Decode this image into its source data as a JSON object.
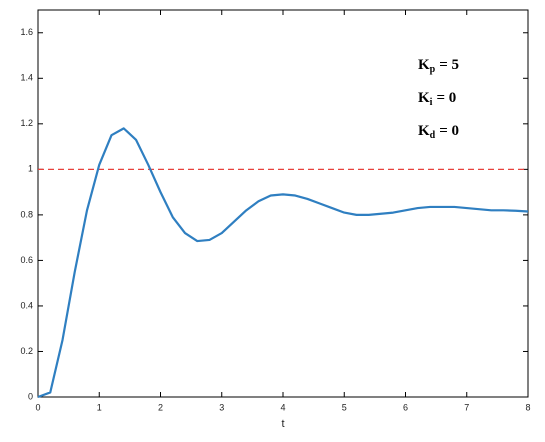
{
  "chart_data": {
    "type": "line",
    "x_label": "t",
    "x": [
      0,
      0.2,
      0.4,
      0.6,
      0.8,
      1.0,
      1.2,
      1.4,
      1.6,
      1.8,
      2.0,
      2.2,
      2.4,
      2.6,
      2.8,
      3.0,
      3.2,
      3.4,
      3.6,
      3.8,
      4.0,
      4.2,
      4.4,
      4.6,
      4.8,
      5.0,
      5.2,
      5.4,
      5.6,
      5.8,
      6.0,
      6.2,
      6.4,
      6.6,
      6.8,
      7.0,
      7.2,
      7.4,
      7.6,
      7.8,
      8.0
    ],
    "values": [
      0,
      0.02,
      0.25,
      0.55,
      0.82,
      1.02,
      1.15,
      1.18,
      1.13,
      1.02,
      0.9,
      0.79,
      0.72,
      0.685,
      0.69,
      0.72,
      0.77,
      0.82,
      0.86,
      0.885,
      0.89,
      0.885,
      0.87,
      0.85,
      0.83,
      0.81,
      0.8,
      0.8,
      0.805,
      0.81,
      0.82,
      0.83,
      0.835,
      0.835,
      0.835,
      0.83,
      0.825,
      0.82,
      0.82,
      0.818,
      0.815
    ],
    "color": "#2f7fc1",
    "reference_line": {
      "value": 1,
      "color": "#e8413b"
    },
    "xlim": [
      0,
      8
    ],
    "xticks": [
      0,
      1,
      2,
      3,
      4,
      5,
      6,
      7,
      8
    ],
    "ylim": [
      0,
      1.7
    ],
    "yticks": [
      0,
      0.2,
      0.4,
      0.6,
      0.8,
      1,
      1.2,
      1.4,
      1.6
    ],
    "annotations": [
      {
        "symbol": "K",
        "subscript": "p",
        "text": "= 5"
      },
      {
        "symbol": "K",
        "subscript": "i",
        "text": "= 0"
      },
      {
        "symbol": "K",
        "subscript": "d",
        "text": "= 0"
      }
    ]
  }
}
